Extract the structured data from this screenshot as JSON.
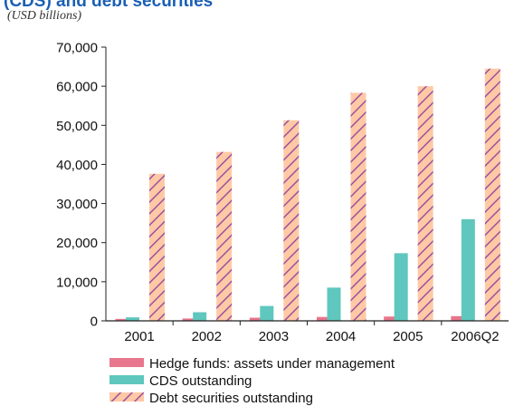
{
  "chart_data": {
    "type": "bar",
    "title": "(CDS) and debt securities",
    "subtitle": "(USD billions)",
    "categories": [
      "2001",
      "2002",
      "2003",
      "2004",
      "2005",
      "2006Q2"
    ],
    "ylim": [
      0,
      70000
    ],
    "yticks": [
      0,
      10000,
      20000,
      30000,
      40000,
      50000,
      60000,
      70000
    ],
    "ytick_labels": [
      "0",
      "10,000",
      "20,000",
      "30,000",
      "40,000",
      "50,000",
      "60,000",
      "70,000"
    ],
    "grid": false,
    "legend_position": "bottom",
    "series": [
      {
        "name": "Hedge funds: assets under management",
        "color": "#e8768c",
        "pattern": "solid",
        "values": [
          500,
          600,
          800,
          1000,
          1100,
          1200
        ]
      },
      {
        "name": "CDS outstanding",
        "color": "#5fc7bd",
        "pattern": "solid",
        "values": [
          900,
          2200,
          3800,
          8500,
          17300,
          26000
        ]
      },
      {
        "name": "Debt securities outstanding",
        "color": "#ffc9a5",
        "pattern": "hatched",
        "hatch_color": "#8a3f9e",
        "values": [
          37600,
          43200,
          51300,
          58300,
          60000,
          64500
        ]
      }
    ]
  }
}
